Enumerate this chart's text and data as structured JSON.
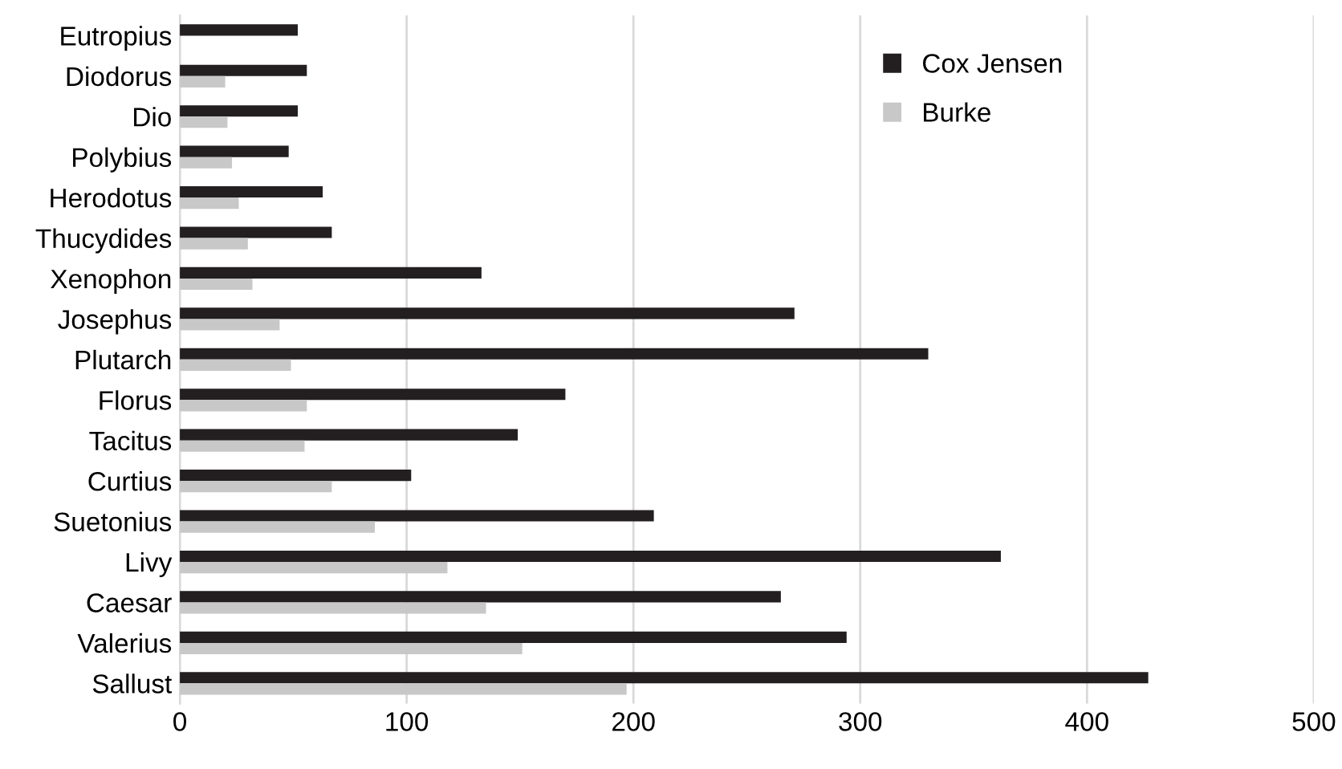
{
  "chart_data": {
    "type": "bar",
    "orientation": "horizontal",
    "categories": [
      "Eutropius",
      "Diodorus",
      "Dio",
      "Polybius",
      "Herodotus",
      "Thucydides",
      "Xenophon",
      "Josephus",
      "Plutarch",
      "Florus",
      "Tacitus",
      "Curtius",
      "Suetonius",
      "Livy",
      "Caesar",
      "Valerius",
      "Sallust"
    ],
    "series": [
      {
        "name": "Cox Jensen",
        "color": "#231f20",
        "values": [
          52,
          56,
          52,
          48,
          63,
          67,
          133,
          271,
          330,
          170,
          149,
          102,
          209,
          362,
          265,
          294,
          427
        ]
      },
      {
        "name": "Burke",
        "color": "#c8c8c8",
        "values": [
          null,
          20,
          21,
          23,
          26,
          30,
          32,
          44,
          49,
          56,
          55,
          67,
          86,
          118,
          135,
          151,
          197
        ]
      }
    ],
    "xlim": [
      0,
      500
    ],
    "xticks": [
      0,
      100,
      200,
      300,
      400,
      500
    ],
    "grid": "x",
    "legend": "top right"
  }
}
